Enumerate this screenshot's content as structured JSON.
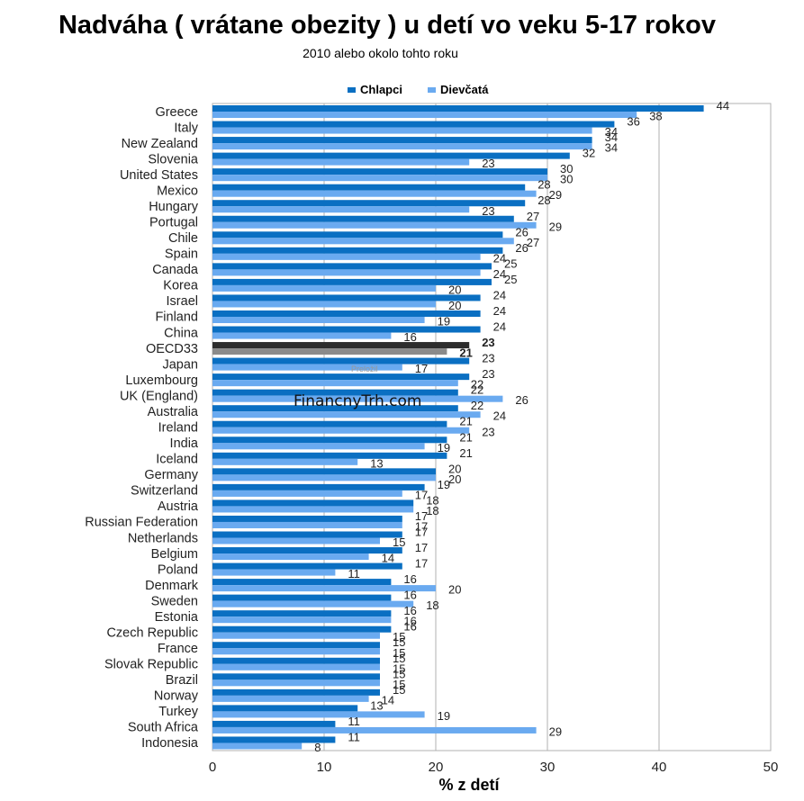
{
  "chart_data": {
    "type": "bar",
    "orientation": "horizontal",
    "title": "Nadváha ( vrátane obezity ) u detí vo veku 5-17 rokov",
    "subtitle": "2010 alebo okolo tohto roku",
    "xlabel": "% z detí",
    "xlim": [
      0,
      50
    ],
    "xticks": [
      "0",
      "10",
      "20",
      "30",
      "40",
      "50"
    ],
    "grid": "vertical",
    "legend_position": "top",
    "colors": {
      "boys": "#0a6fc2",
      "girls": "#6aaaf0",
      "oecd": "#2d2d2d",
      "grid": "#b0b0b0"
    },
    "categories": [
      "Greece",
      "Italy",
      "New Zealand",
      "Slovenia",
      "United States",
      "Mexico",
      "Hungary",
      "Portugal",
      "Chile",
      "Spain",
      "Canada",
      "Korea",
      "Israel",
      "Finland",
      "China",
      "OECD33",
      "Japan",
      "Luxembourg",
      "UK (England)",
      "Australia",
      "Ireland",
      "India",
      "Iceland",
      "Germany",
      "Switzerland",
      "Austria",
      "Russian Federation",
      "Netherlands",
      "Belgium",
      "Poland",
      "Denmark",
      "Sweden",
      "Estonia",
      "Czech Republic",
      "France",
      "Slovak Republic",
      "Brazil",
      "Norway",
      "Turkey",
      "South Africa",
      "Indonesia"
    ],
    "highlight": "OECD33",
    "series": [
      {
        "name": "Chlapci",
        "values": [
          44,
          36,
          34,
          32,
          30,
          28,
          28,
          27,
          26,
          26,
          25,
          25,
          24,
          24,
          24,
          23,
          23,
          23,
          22,
          22,
          21,
          21,
          21,
          20,
          19,
          18,
          17,
          17,
          17,
          17,
          16,
          16,
          16,
          16,
          15,
          15,
          15,
          15,
          13,
          11,
          11
        ]
      },
      {
        "name": "Dievčatá",
        "values": [
          38,
          34,
          34,
          23,
          30,
          29,
          23,
          29,
          27,
          24,
          24,
          20,
          20,
          19,
          16,
          21,
          17,
          22,
          26,
          24,
          23,
          19,
          13,
          20,
          17,
          18,
          17,
          15,
          14,
          11,
          20,
          18,
          16,
          15,
          15,
          15,
          15,
          14,
          19,
          29,
          8
        ]
      }
    ]
  },
  "watermark": {
    "main": "FinancnyTrh.com",
    "small": "Preložil"
  }
}
